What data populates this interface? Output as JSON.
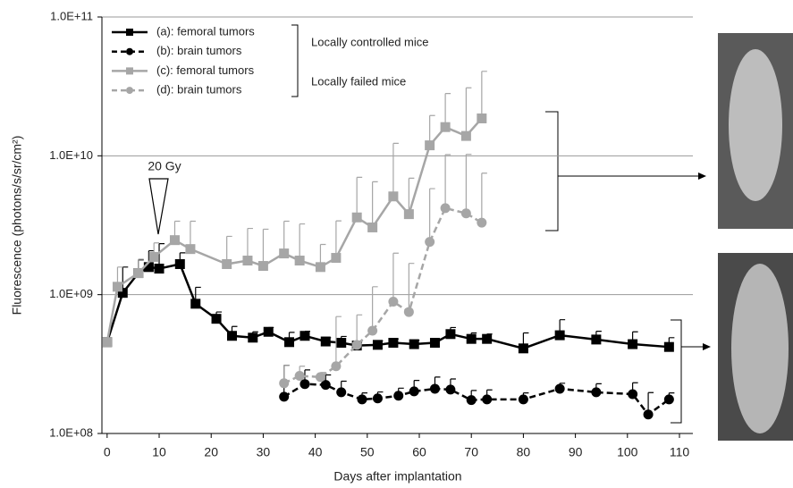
{
  "chart_data": {
    "type": "line",
    "x_label": "Days after implantation",
    "y_label": "Fluorescence (photons/s/sr/cm²)",
    "log_y": true,
    "grid": true,
    "legend": "upper-left",
    "xlim": [
      -1,
      110
    ],
    "xticks": [
      0,
      10,
      20,
      30,
      40,
      50,
      60,
      70,
      80,
      90,
      100,
      110
    ],
    "ylim": [
      100000000,
      100000000000
    ],
    "yticks": [
      {
        "value": 100000000,
        "label": "1.0E+08"
      },
      {
        "value": 1000000000,
        "label": "1.0E+09"
      },
      {
        "value": 10000000000,
        "label": "1.0E+10"
      },
      {
        "value": 100000000000,
        "label": "1.0E+11"
      }
    ],
    "annotations": [
      "20 Gy",
      "Locally controlled mice",
      "Locally failed mice"
    ],
    "series": [
      {
        "name": "(a): femoral tumors",
        "color": "#000000",
        "marker": "square",
        "dashed": false,
        "x": [
          0,
          3,
          6,
          8,
          10,
          14,
          17,
          21,
          24,
          28,
          31,
          35,
          38,
          42,
          45,
          48,
          52,
          55,
          59,
          63,
          66,
          70,
          73,
          80,
          87,
          94,
          101,
          108
        ],
        "values": [
          455000000,
          1030000000,
          1430000000,
          1580000000,
          1540000000,
          1660000000,
          860000000,
          670000000,
          505000000,
          490000000,
          540000000,
          455000000,
          505000000,
          460000000,
          450000000,
          430000000,
          435000000,
          450000000,
          440000000,
          450000000,
          520000000,
          480000000,
          480000000,
          410000000,
          510000000,
          475000000,
          440000000,
          420000000
        ],
        "errors": [
          0,
          550000000,
          350000000,
          490000000,
          790000000,
          340000000,
          270000000,
          80000000,
          85000000,
          50000000,
          40000000,
          80000000,
          40000000,
          30000000,
          50000000,
          30000000,
          30000000,
          30000000,
          30000000,
          30000000,
          60000000,
          50000000,
          40000000,
          120000000,
          150000000,
          70000000,
          100000000,
          70000000
        ]
      },
      {
        "name": "(b): brain tumors",
        "color": "#000000",
        "marker": "circle",
        "dashed": true,
        "x": [
          34,
          38,
          42,
          45,
          49,
          52,
          56,
          59,
          63,
          66,
          70,
          73,
          80,
          87,
          94,
          101,
          104,
          108
        ],
        "values": [
          184000000,
          227000000,
          224000000,
          198000000,
          176000000,
          179000000,
          187000000,
          201000000,
          210000000,
          207000000,
          174000000,
          176000000,
          176000000,
          210000000,
          198000000,
          192000000,
          137000000,
          176000000
        ],
        "errors": [
          126000000,
          60000000,
          40000000,
          40000000,
          20000000,
          20000000,
          25000000,
          40000000,
          45000000,
          40000000,
          30000000,
          30000000,
          20000000,
          20000000,
          30000000,
          40000000,
          60000000,
          20000000
        ]
      },
      {
        "name": "(c): femoral tumors",
        "color": "#a6a6a6",
        "marker": "square",
        "dashed": false,
        "x": [
          0,
          2,
          6,
          9,
          13,
          16,
          23,
          27,
          30,
          34,
          37,
          41,
          44,
          48,
          51,
          55,
          58,
          62,
          65,
          69,
          72
        ],
        "values": [
          455000000,
          1140000000,
          1430000000,
          1870000000,
          2470000000,
          2130000000,
          1660000000,
          1760000000,
          1610000000,
          1980000000,
          1760000000,
          1580000000,
          1840000000,
          3600000000,
          3050000000,
          5100000000,
          3800000000,
          11900000000,
          16100000000,
          13900000000,
          18600000000
        ],
        "errors": [
          0,
          440000000,
          370000000,
          490000000,
          910000000,
          1250000000,
          970000000,
          1240000000,
          1350000000,
          1400000000,
          1470000000,
          720000000,
          1560000000,
          3400000000,
          3450000000,
          7200000000,
          3100000000,
          7600000000,
          12000000000,
          17000000000,
          22000000000
        ]
      },
      {
        "name": "(d): brain tumors",
        "color": "#a6a6a6",
        "marker": "circle",
        "dashed": true,
        "x": [
          34,
          37,
          41,
          44,
          48,
          51,
          55,
          58,
          62,
          65,
          69,
          72
        ],
        "values": [
          230000000,
          260000000,
          255000000,
          305000000,
          435000000,
          550000000,
          890000000,
          750000000,
          2400000000,
          4200000000,
          3850000000,
          3300000000
        ],
        "errors": [
          80000000,
          45000000,
          20000000,
          390000000,
          280000000,
          590000000,
          1100000000,
          930000000,
          3400000000,
          6000000000,
          6400000000,
          4200000000
        ]
      }
    ]
  }
}
